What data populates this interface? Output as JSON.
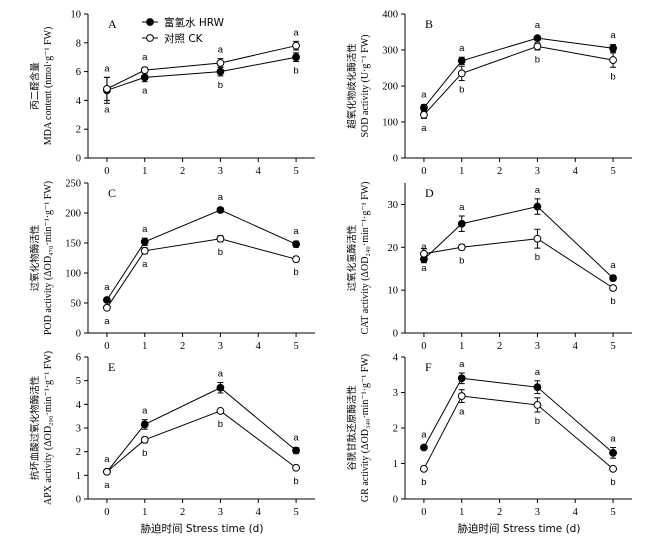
{
  "legend": {
    "hrw": "富氢水 HRW",
    "ck": "对照 CK"
  },
  "x_axis_label_left": "胁迫时间 Stress time (d)",
  "x_axis_label_right": "胁迫时间 Stress time (d)",
  "chart_data": [
    {
      "panel": "A",
      "type": "line",
      "ylabel_cn": "丙二醛含量",
      "ylabel_en": "MDA content (nmol·g⁻¹ FW)",
      "x": [
        0,
        1,
        3,
        5
      ],
      "xlim": [
        -0.5,
        5.5
      ],
      "ylim": [
        0,
        10
      ],
      "yticks": [
        0,
        2,
        4,
        6,
        8,
        10
      ],
      "series": [
        {
          "name": "富氢水 HRW",
          "values": [
            4.7,
            5.6,
            6.0,
            7.0
          ],
          "err": [
            0.9,
            0.3,
            0.3,
            0.3
          ],
          "sig": [
            "a",
            "a",
            "b",
            "b"
          ],
          "sig_pos": [
            "above",
            "below",
            "below",
            "below"
          ]
        },
        {
          "name": "对照 CK",
          "values": [
            4.8,
            6.1,
            6.6,
            7.8
          ],
          "err": [
            0.8,
            0.2,
            0.3,
            0.3
          ],
          "sig": [
            "a",
            "a",
            "a",
            "a"
          ],
          "sig_pos": [
            "below",
            "above",
            "above",
            "above"
          ]
        }
      ]
    },
    {
      "panel": "B",
      "type": "line",
      "ylabel_cn": "超氧化物歧化酶活性",
      "ylabel_en": "SOD activity (U·g⁻¹ FW)",
      "x": [
        0,
        1,
        3,
        5
      ],
      "xlim": [
        -0.5,
        5.5
      ],
      "ylim": [
        0,
        400
      ],
      "yticks": [
        0,
        100,
        200,
        300,
        400
      ],
      "series": [
        {
          "name": "富氢水 HRW",
          "values": [
            140,
            270,
            333,
            305
          ],
          "err": [
            8,
            10,
            6,
            10
          ],
          "sig": [
            "a",
            "a",
            "a",
            "a"
          ],
          "sig_pos": [
            "above",
            "above",
            "above",
            "above"
          ]
        },
        {
          "name": "对照 CK",
          "values": [
            120,
            235,
            310,
            272
          ],
          "err": [
            10,
            20,
            10,
            20
          ],
          "sig": [
            "a",
            "b",
            "b",
            "b"
          ],
          "sig_pos": [
            "below",
            "below",
            "below",
            "below"
          ]
        }
      ]
    },
    {
      "panel": "C",
      "type": "line",
      "ylabel_cn": "过氧化物酶活性",
      "ylabel_en": "POD activity (ΔOD₄₇₀·min⁻¹·g⁻¹ FW)",
      "x": [
        0,
        1,
        3,
        5
      ],
      "xlim": [
        -0.5,
        5.5
      ],
      "ylim": [
        0,
        250
      ],
      "yticks": [
        0,
        50,
        100,
        150,
        200,
        250
      ],
      "series": [
        {
          "name": "富氢水 HRW",
          "values": [
            55,
            152,
            205,
            148
          ],
          "err": [
            3,
            6,
            4,
            5
          ],
          "sig": [
            "a",
            "a",
            "a",
            "a"
          ],
          "sig_pos": [
            "above",
            "above",
            "above",
            "above"
          ]
        },
        {
          "name": "对照 CK",
          "values": [
            42,
            137,
            157,
            123
          ],
          "err": [
            3,
            5,
            5,
            4
          ],
          "sig": [
            "a",
            "a",
            "b",
            "b"
          ],
          "sig_pos": [
            "below",
            "below",
            "below",
            "below"
          ]
        }
      ]
    },
    {
      "panel": "D",
      "type": "line",
      "ylabel_cn": "过氧化氢酶活性",
      "ylabel_en": "CAT activity (ΔOD₂₄₀·min⁻¹·g⁻¹ FW)",
      "x": [
        0,
        1,
        3,
        5
      ],
      "xlim": [
        -0.5,
        5.5
      ],
      "ylim": [
        0,
        35
      ],
      "yticks": [
        0,
        10,
        20,
        30
      ],
      "series": [
        {
          "name": "富氢水 HRW",
          "values": [
            17.2,
            25.5,
            29.5,
            12.8
          ],
          "err": [
            0.8,
            1.8,
            1.8,
            0.6
          ],
          "sig": [
            "a",
            "a",
            "a",
            "a"
          ],
          "sig_pos": [
            "above",
            "above",
            "above",
            "above"
          ]
        },
        {
          "name": "对照 CK",
          "values": [
            18.5,
            20.0,
            22.0,
            10.5
          ],
          "err": [
            1.2,
            0.6,
            2.2,
            0.5
          ],
          "sig": [
            "a",
            "b",
            "b",
            "b"
          ],
          "sig_pos": [
            "below",
            "below",
            "below",
            "below"
          ]
        }
      ]
    },
    {
      "panel": "E",
      "type": "line",
      "ylabel_cn": "抗坏血酸过氧化物酶活性",
      "ylabel_en": "APX activity (ΔOD₂₉₀·min⁻¹·g⁻¹ FW)",
      "x": [
        0,
        1,
        3,
        5
      ],
      "xlim": [
        -0.5,
        5.5
      ],
      "ylim": [
        0,
        6
      ],
      "yticks": [
        0,
        1,
        2,
        3,
        4,
        5,
        6
      ],
      "series": [
        {
          "name": "富氢水 HRW",
          "values": [
            1.15,
            3.15,
            4.7,
            2.05
          ],
          "err": [
            0.08,
            0.2,
            0.22,
            0.12
          ],
          "sig": [
            "a",
            "a",
            "a",
            "a"
          ],
          "sig_pos": [
            "above",
            "above",
            "above",
            "above"
          ]
        },
        {
          "name": "对照 CK",
          "values": [
            1.15,
            2.5,
            3.72,
            1.32
          ],
          "err": [
            0.08,
            0.12,
            0.08,
            0.05
          ],
          "sig": [
            "a",
            "b",
            "b",
            "b"
          ],
          "sig_pos": [
            "below",
            "below",
            "below",
            "below"
          ]
        }
      ]
    },
    {
      "panel": "F",
      "type": "line",
      "ylabel_cn": "谷胱甘肽还原酶活性",
      "ylabel_en": "GR activity (ΔOD₃₄₀·min⁻¹·g⁻¹ FW)",
      "x": [
        0,
        1,
        3,
        5
      ],
      "xlim": [
        -0.5,
        5.5
      ],
      "ylim": [
        0,
        4
      ],
      "yticks": [
        0,
        1,
        2,
        3,
        4
      ],
      "series": [
        {
          "name": "富氢水 HRW",
          "values": [
            1.45,
            3.4,
            3.15,
            1.3
          ],
          "err": [
            0.05,
            0.15,
            0.18,
            0.15
          ],
          "sig": [
            "a",
            "a",
            "a",
            "a"
          ],
          "sig_pos": [
            "above",
            "above",
            "above",
            "above"
          ]
        },
        {
          "name": "对照 CK",
          "values": [
            0.85,
            2.9,
            2.65,
            0.85
          ],
          "err": [
            0.05,
            0.18,
            0.2,
            0.05
          ],
          "sig": [
            "b",
            "a",
            "b",
            "b"
          ],
          "sig_pos": [
            "below",
            "below",
            "below",
            "below"
          ]
        }
      ]
    }
  ]
}
